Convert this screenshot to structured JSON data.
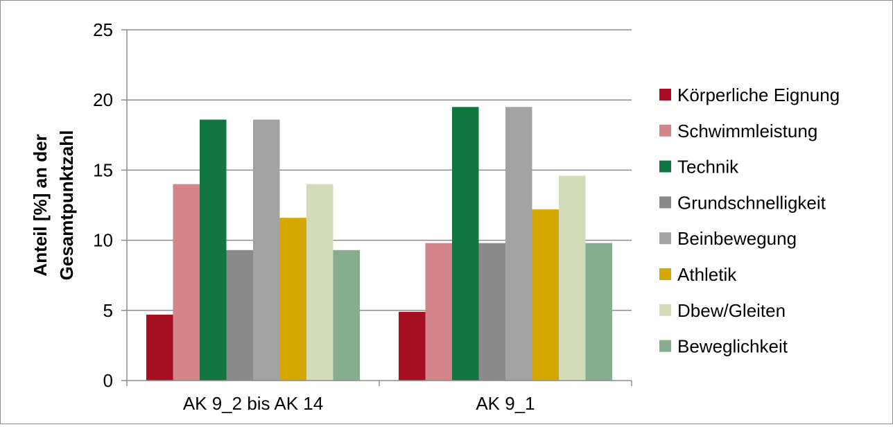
{
  "chart_data": {
    "type": "bar",
    "title": "",
    "xlabel": "",
    "ylabel_lines": [
      "Anteil [%] an der",
      "Gesamtpunktzahl"
    ],
    "categories": [
      "AK 9_2 bis AK 14",
      "AK 9_1"
    ],
    "ylim": [
      0,
      25
    ],
    "yticks": [
      0,
      5,
      10,
      15,
      20,
      25
    ],
    "grid": true,
    "legend_position": "right",
    "series": [
      {
        "name": "Körperliche Eignung",
        "color": "#a50f21",
        "values": [
          4.7,
          4.9
        ]
      },
      {
        "name": "Schwimmleistung",
        "color": "#d4858a",
        "values": [
          14.0,
          9.8
        ]
      },
      {
        "name": "Technik",
        "color": "#137542",
        "values": [
          18.6,
          19.5
        ]
      },
      {
        "name": "Grundschnelligkeit",
        "color": "#8a8a8a",
        "values": [
          9.3,
          9.8
        ]
      },
      {
        "name": "Beinbewegung",
        "color": "#a3a3a3",
        "values": [
          18.6,
          19.5
        ]
      },
      {
        "name": "Athletik",
        "color": "#d4a800",
        "values": [
          11.6,
          12.2
        ]
      },
      {
        "name": "Dbew/Gleiten",
        "color": "#d3dcb8",
        "values": [
          14.0,
          14.6
        ]
      },
      {
        "name": "Beweglichkeit",
        "color": "#86ad90",
        "values": [
          9.3,
          9.8
        ]
      }
    ]
  }
}
